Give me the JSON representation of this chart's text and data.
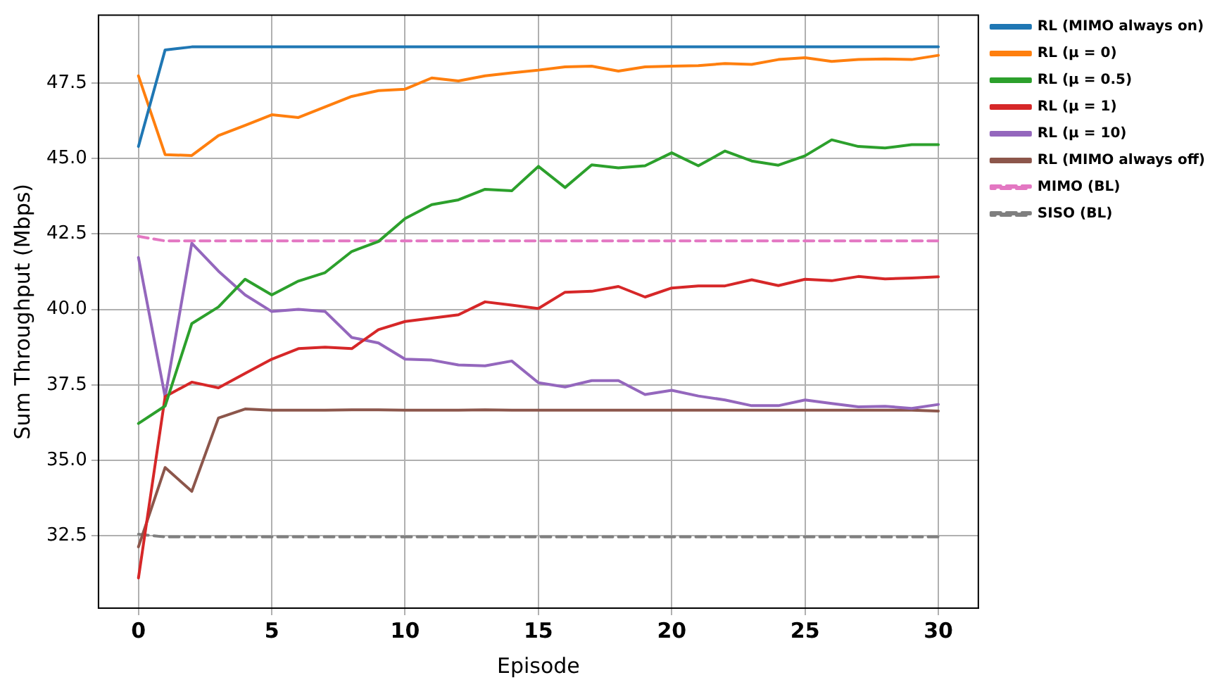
{
  "chart_data": {
    "type": "line",
    "xlabel": "Episode",
    "ylabel": "Sum Throughput (Mbps)",
    "x": [
      0,
      1,
      2,
      3,
      4,
      5,
      6,
      7,
      8,
      9,
      10,
      11,
      12,
      13,
      14,
      15,
      16,
      17,
      18,
      19,
      20,
      21,
      22,
      23,
      24,
      25,
      26,
      27,
      28,
      29,
      30
    ],
    "xlim": [
      -1.5,
      31.5
    ],
    "ylim": [
      30.1,
      49.75
    ],
    "xticks": [
      0,
      5,
      10,
      15,
      20,
      25,
      30
    ],
    "yticks": [
      {
        "value": 32.5,
        "label": "32.5"
      },
      {
        "value": 35,
        "label": "35.0"
      },
      {
        "value": 37.5,
        "label": "37.5"
      },
      {
        "value": 40,
        "label": "40.0"
      },
      {
        "value": 42.5,
        "label": "42.5"
      },
      {
        "value": 45,
        "label": "45.0"
      },
      {
        "value": 47.5,
        "label": "47.5"
      }
    ],
    "grid": true,
    "legend": "top right",
    "series": [
      {
        "name": "RL (MIMO always on)",
        "color": "#1f77b4",
        "values": [
          45.4,
          48.6,
          48.7,
          48.7,
          48.7,
          48.7,
          48.7,
          48.7,
          48.7,
          48.7,
          48.7,
          48.7,
          48.7,
          48.7,
          48.7,
          48.7,
          48.7,
          48.7,
          48.7,
          48.7,
          48.7,
          48.7,
          48.7,
          48.7,
          48.7,
          48.7,
          48.7,
          48.7,
          48.7,
          48.7,
          48.7
        ]
      },
      {
        "name": "RL (μ = 0)",
        "color": "#ff7f0e",
        "values": [
          47.74,
          45.13,
          45.1,
          45.76,
          46.1,
          46.45,
          46.36,
          46.71,
          47.06,
          47.25,
          47.3,
          47.67,
          47.57,
          47.74,
          47.84,
          47.93,
          48.04,
          48.06,
          47.9,
          48.04,
          48.06,
          48.08,
          48.15,
          48.12,
          48.28,
          48.34,
          48.22,
          48.28,
          48.3,
          48.28,
          48.42
        ]
      },
      {
        "name": "RL (μ = 0.5)",
        "color": "#2ca02c",
        "values": [
          36.22,
          36.8,
          39.53,
          40.08,
          41.0,
          40.48,
          40.94,
          41.22,
          41.92,
          42.25,
          43.01,
          43.47,
          43.63,
          43.98,
          43.93,
          44.74,
          44.04,
          44.79,
          44.69,
          44.76,
          45.19,
          44.76,
          45.25,
          44.92,
          44.78,
          45.09,
          45.62,
          45.4,
          45.35,
          45.46,
          45.46
        ]
      },
      {
        "name": "RL (μ = 1)",
        "color": "#d62728",
        "values": [
          31.1,
          37.11,
          37.59,
          37.4,
          37.88,
          38.35,
          38.7,
          38.75,
          38.7,
          39.33,
          39.6,
          39.71,
          39.82,
          40.25,
          40.14,
          40.03,
          40.57,
          40.6,
          40.76,
          40.41,
          40.71,
          40.78,
          40.78,
          40.98,
          40.79,
          41.0,
          40.95,
          41.09,
          41.01,
          41.04,
          41.08
        ]
      },
      {
        "name": "RL (μ = 10)",
        "color": "#9467bd",
        "values": [
          41.72,
          37.1,
          42.19,
          41.27,
          40.48,
          39.93,
          40.0,
          39.93,
          39.07,
          38.89,
          38.35,
          38.32,
          38.16,
          38.13,
          38.29,
          37.57,
          37.43,
          37.64,
          37.64,
          37.18,
          37.32,
          37.13,
          37.0,
          36.81,
          36.81,
          37.0,
          36.88,
          36.77,
          36.79,
          36.72,
          36.85
        ]
      },
      {
        "name": "RL (MIMO always off)",
        "color": "#8c564b",
        "values": [
          32.13,
          34.76,
          33.97,
          36.4,
          36.7,
          36.66,
          36.66,
          36.66,
          36.67,
          36.67,
          36.66,
          36.66,
          36.66,
          36.67,
          36.66,
          36.66,
          36.66,
          36.66,
          36.66,
          36.66,
          36.66,
          36.66,
          36.66,
          36.66,
          36.66,
          36.66,
          36.66,
          36.66,
          36.66,
          36.66,
          36.63
        ]
      },
      {
        "name": "MIMO (BL)",
        "color": "#e377c2",
        "line_style": "dashed",
        "values": [
          42.42,
          42.27,
          42.27,
          42.27,
          42.27,
          42.27,
          42.27,
          42.27,
          42.27,
          42.27,
          42.27,
          42.27,
          42.27,
          42.27,
          42.27,
          42.27,
          42.27,
          42.27,
          42.27,
          42.27,
          42.27,
          42.27,
          42.27,
          42.27,
          42.27,
          42.27,
          42.27,
          42.27,
          42.27,
          42.27,
          42.27
        ]
      },
      {
        "name": "SISO (BL)",
        "color": "#7f7f7f",
        "line_style": "dashed",
        "values": [
          32.55,
          32.46,
          32.46,
          32.46,
          32.46,
          32.46,
          32.46,
          32.46,
          32.46,
          32.46,
          32.46,
          32.46,
          32.46,
          32.46,
          32.46,
          32.46,
          32.46,
          32.46,
          32.46,
          32.46,
          32.46,
          32.46,
          32.46,
          32.46,
          32.46,
          32.46,
          32.46,
          32.46,
          32.46,
          32.46,
          32.46
        ]
      }
    ]
  }
}
